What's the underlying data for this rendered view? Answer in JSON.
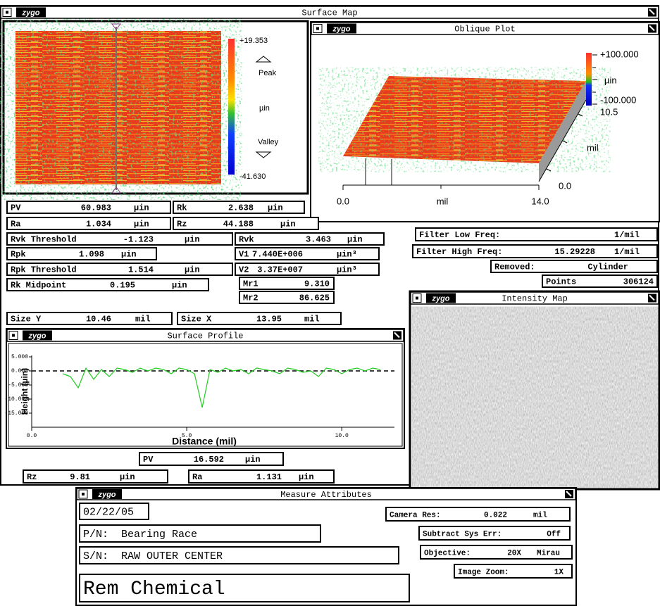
{
  "brand": "zygo",
  "main_window": {
    "title": "Surface Map"
  },
  "surface_map": {
    "colorbar": {
      "max": "+19.353",
      "peak": "Peak",
      "unit": "µin",
      "valley": "Valley",
      "min": "-41.630"
    }
  },
  "oblique_plot": {
    "title": "Oblique Plot",
    "colorbar": {
      "max": "+100.000",
      "unit": "µin",
      "min": "-100.000"
    },
    "axes": {
      "y_max": "10.5",
      "y_unit": "mil",
      "y_min": "0.0",
      "x_min": "0.0",
      "x_unit": "mil",
      "x_max": "14.0"
    }
  },
  "results": [
    {
      "label": "PV",
      "value": "60.983",
      "unit": "µin"
    },
    {
      "label": "Rk",
      "value": "2.638",
      "unit": "µin"
    },
    {
      "label": "Ra",
      "value": "1.034",
      "unit": "µin"
    },
    {
      "label": "Rz",
      "value": "44.188",
      "unit": "µin"
    },
    {
      "label": "Rvk Threshold",
      "value": "-1.123",
      "unit": "µin"
    },
    {
      "label": "Rvk",
      "value": "3.463",
      "unit": "µin"
    },
    {
      "label": "Rpk",
      "value": "1.098",
      "unit": "µin"
    },
    {
      "label": "V1",
      "value": "7.440E+006",
      "unit": "µin³"
    },
    {
      "label": "Rpk Threshold",
      "value": "1.514",
      "unit": "µin"
    },
    {
      "label": "V2",
      "value": "3.37E+007",
      "unit": "µin³"
    },
    {
      "label": "Rk Midpoint",
      "value": "0.195",
      "unit": "µin"
    },
    {
      "label": "Mr1",
      "value": "9.310"
    },
    {
      "label": "Mr2",
      "value": "86.625"
    }
  ],
  "filter": [
    {
      "label": "Filter Low Freq:",
      "unit": "1/mil"
    },
    {
      "label": "Filter High Freq:",
      "value": "15.29228",
      "unit": "1/mil"
    },
    {
      "label": "Removed:",
      "value": "Cylinder"
    },
    {
      "label": "Points",
      "value": "306124"
    }
  ],
  "size": [
    {
      "label": "Size Y",
      "value": "10.46",
      "unit": "mil"
    },
    {
      "label": "Size X",
      "value": "13.95",
      "unit": "mil"
    }
  ],
  "intensity_map": {
    "title": "Intensity Map"
  },
  "surface_profile": {
    "title": "Surface Profile",
    "chart_data": {
      "type": "line",
      "x_label": "Distance (mil)",
      "y_label": "Height (µin)",
      "color": "#22cc22",
      "x": [
        1.0,
        1.25,
        1.5,
        1.75,
        2.0,
        2.25,
        2.5,
        2.75,
        3.0,
        3.25,
        3.5,
        3.75,
        4.0,
        4.25,
        4.5,
        4.75,
        5.0,
        5.25,
        5.5,
        5.75,
        6.0,
        6.25,
        6.5,
        6.75,
        7.0,
        7.25,
        7.5,
        7.75,
        8.0,
        8.25,
        8.5,
        8.75,
        9.0,
        9.25,
        9.5,
        9.75,
        10.0,
        10.25,
        10.5,
        10.75,
        11.0,
        11.25
      ],
      "values": [
        -1,
        -2,
        -6,
        1,
        -3,
        0.5,
        -2,
        1,
        0.5,
        -0.5,
        1,
        0,
        1,
        0.5,
        -1,
        1,
        0.5,
        -1,
        -13,
        0.5,
        -0.5,
        1,
        0,
        0.5,
        -1,
        1,
        0.5,
        0,
        -1,
        1,
        0.5,
        -0.5,
        0,
        -2,
        1,
        0.5,
        -1,
        0.5,
        1,
        0,
        1,
        0.5
      ],
      "xlim": [
        0,
        11.7
      ],
      "ylim": [
        -20,
        5.5
      ],
      "xticks": [
        {
          "value": 0,
          "label": "0.0"
        },
        {
          "value": 5,
          "label": "5.0"
        },
        {
          "value": 10,
          "label": "10.0"
        }
      ],
      "yticks": [
        {
          "value": 5,
          "label": "5.000"
        },
        {
          "value": 0,
          "label": "0.000"
        },
        {
          "value": -5,
          "label": "-5.000"
        },
        {
          "value": -10,
          "label": "-10.000"
        },
        {
          "value": -15,
          "label": "-15.000"
        }
      ]
    },
    "stats": [
      {
        "label": "PV",
        "value": "16.592",
        "unit": "µin"
      },
      {
        "label": "Rz",
        "value": "9.81",
        "unit": "µin"
      },
      {
        "label": "Ra",
        "value": "1.131",
        "unit": "µin"
      }
    ]
  },
  "measure_attributes": {
    "title": "Measure Attributes",
    "date": "02/22/05",
    "part_number": "P/N:  Bearing Race",
    "serial_number": "S/N:  RAW OUTER CENTER",
    "note": "Rem Chemical",
    "settings": [
      {
        "label": "Camera Res:",
        "value": "0.022",
        "unit": "mil"
      },
      {
        "label": "Subtract Sys Err:",
        "value": "Off"
      },
      {
        "label": "Objective:",
        "value": "20X",
        "unit": "Mirau"
      },
      {
        "label": "Image Zoom:",
        "value": "1X"
      }
    ]
  }
}
